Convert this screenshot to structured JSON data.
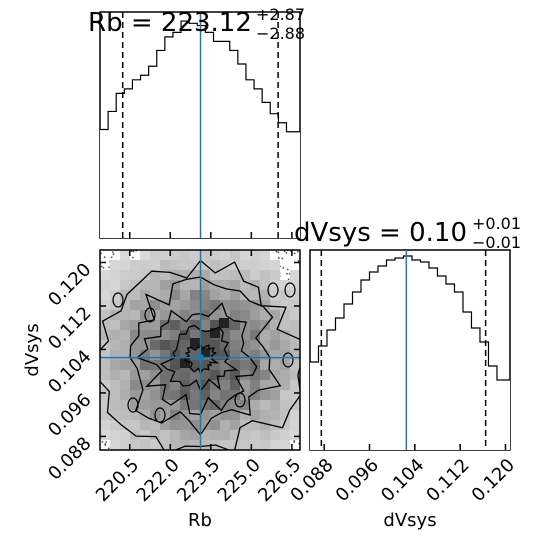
{
  "chart_data": {
    "type": "corner",
    "parameters": [
      "Rb",
      "dVsys"
    ],
    "median_color": "#1f77b4",
    "line_color": "#000000",
    "panels": [
      {
        "type": "histogram",
        "parameter": "Rb",
        "title": {
          "name": "Rb",
          "value": "223.12",
          "plus": "+2.87",
          "minus": "−2.88"
        },
        "xlim": [
          219.4,
          226.8
        ],
        "bins": [
          219.4,
          219.7,
          220.0,
          220.3,
          220.6,
          220.9,
          221.2,
          221.5,
          221.8,
          222.1,
          222.4,
          222.7,
          223.0,
          223.3,
          223.6,
          223.9,
          224.2,
          224.5,
          224.8,
          225.1,
          225.4,
          225.7,
          226.0,
          226.3,
          226.8
        ],
        "counts": [
          0.48,
          0.56,
          0.64,
          0.66,
          0.7,
          0.72,
          0.76,
          0.83,
          0.89,
          0.91,
          0.96,
          0.95,
          0.94,
          0.91,
          0.87,
          0.87,
          0.83,
          0.77,
          0.7,
          0.66,
          0.6,
          0.55,
          0.51,
          0.47
        ],
        "quantiles": [
          220.24,
          225.99
        ],
        "median": 223.12
      },
      {
        "type": "histogram",
        "parameter": "dVsys",
        "title": {
          "name": "dVsys",
          "value": "0.10",
          "plus": "+0.01",
          "minus": "−0.01"
        },
        "xlim": [
          0.0855,
          0.1208
        ],
        "bins": [
          0.0855,
          0.087,
          0.0885,
          0.09,
          0.0915,
          0.093,
          0.0945,
          0.096,
          0.0975,
          0.099,
          0.1005,
          0.102,
          0.1035,
          0.105,
          0.1065,
          0.108,
          0.1095,
          0.111,
          0.1125,
          0.114,
          0.1155,
          0.117,
          0.1185,
          0.1208
        ],
        "counts": [
          0.44,
          0.52,
          0.6,
          0.66,
          0.73,
          0.79,
          0.85,
          0.89,
          0.92,
          0.95,
          0.96,
          0.97,
          0.95,
          0.94,
          0.91,
          0.87,
          0.83,
          0.79,
          0.69,
          0.61,
          0.54,
          0.42,
          0.35
        ],
        "quantiles": [
          0.0875,
          0.1165
        ],
        "median": 0.1025,
        "xlabel": "dVsys",
        "xticks": [
          "0.088",
          "0.096",
          "0.104",
          "0.112",
          "0.120"
        ],
        "xtick_values": [
          0.088,
          0.096,
          0.104,
          0.112,
          0.12
        ]
      },
      {
        "type": "2d-histogram",
        "x_parameter": "Rb",
        "y_parameter": "dVsys",
        "xlim": [
          219.4,
          226.8
        ],
        "ylim": [
          0.0855,
          0.1223
        ],
        "xlabel": "Rb",
        "ylabel": "dVsys",
        "xticks": [
          "220.5",
          "222.0",
          "223.5",
          "225.0",
          "226.5"
        ],
        "xtick_values": [
          220.5,
          222.0,
          223.5,
          225.0,
          226.5
        ],
        "yticks": [
          "0.088",
          "0.096",
          "0.104",
          "0.112",
          "0.120"
        ],
        "ytick_values": [
          0.088,
          0.096,
          0.104,
          0.112,
          0.12
        ],
        "median": [
          223.12,
          0.1025
        ]
      }
    ]
  }
}
